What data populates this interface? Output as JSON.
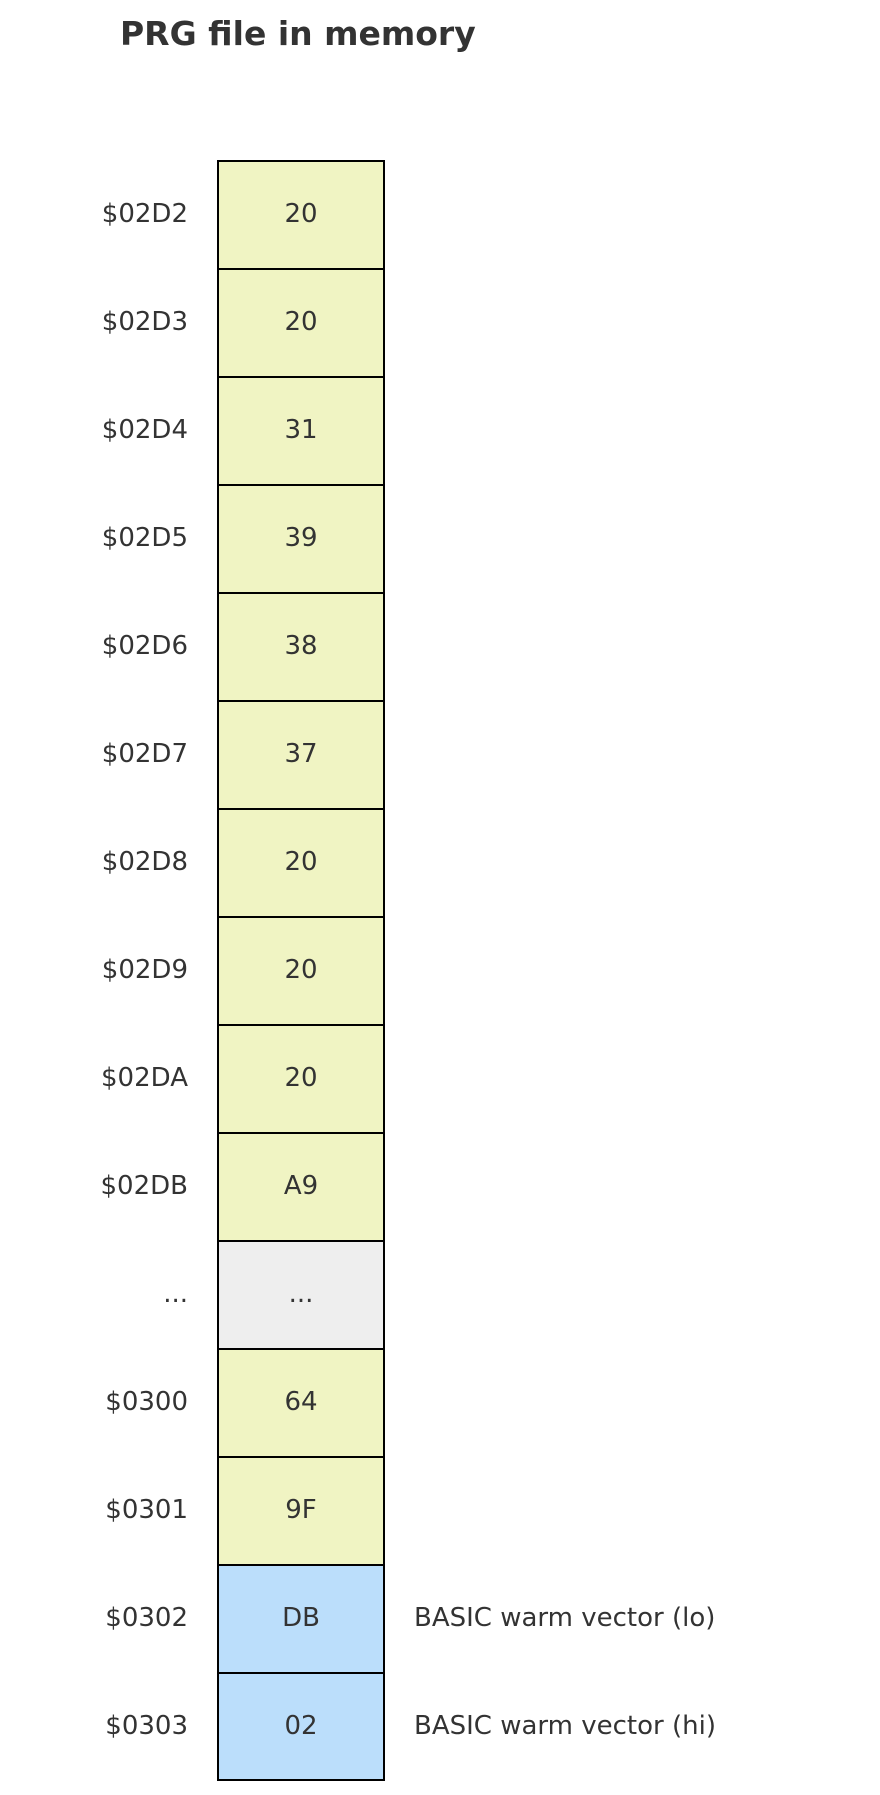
{
  "title": "PRG file in memory",
  "colors": {
    "data": "#f0f4c3",
    "gap": "#eeeeee",
    "vector": "#bbdefb",
    "border": "#000000",
    "text": "#333333"
  },
  "rows": [
    {
      "address": "$02D2",
      "value": "20",
      "kind": "data",
      "note": ""
    },
    {
      "address": "$02D3",
      "value": "20",
      "kind": "data",
      "note": ""
    },
    {
      "address": "$02D4",
      "value": "31",
      "kind": "data",
      "note": ""
    },
    {
      "address": "$02D5",
      "value": "39",
      "kind": "data",
      "note": ""
    },
    {
      "address": "$02D6",
      "value": "38",
      "kind": "data",
      "note": ""
    },
    {
      "address": "$02D7",
      "value": "37",
      "kind": "data",
      "note": ""
    },
    {
      "address": "$02D8",
      "value": "20",
      "kind": "data",
      "note": ""
    },
    {
      "address": "$02D9",
      "value": "20",
      "kind": "data",
      "note": ""
    },
    {
      "address": "$02DA",
      "value": "20",
      "kind": "data",
      "note": ""
    },
    {
      "address": "$02DB",
      "value": "A9",
      "kind": "data",
      "note": ""
    },
    {
      "address": "...",
      "value": "...",
      "kind": "gap",
      "note": ""
    },
    {
      "address": "$0300",
      "value": "64",
      "kind": "data",
      "note": ""
    },
    {
      "address": "$0301",
      "value": "9F",
      "kind": "data",
      "note": ""
    },
    {
      "address": "$0302",
      "value": "DB",
      "kind": "vector",
      "note": "BASIC warm vector (lo)"
    },
    {
      "address": "$0303",
      "value": "02",
      "kind": "vector",
      "note": "BASIC warm vector (hi)"
    }
  ]
}
